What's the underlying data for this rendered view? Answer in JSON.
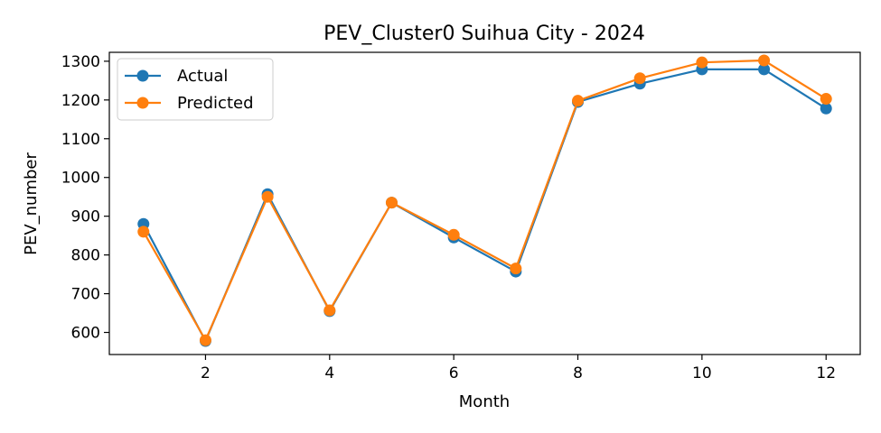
{
  "chart_data": {
    "type": "line",
    "title": "PEV_Cluster0 Suihua City - 2024",
    "xlabel": "Month",
    "ylabel": "PEV_number",
    "xlim": [
      0.45,
      12.55
    ],
    "ylim": [
      543,
      1323
    ],
    "x_ticks": [
      2,
      4,
      6,
      8,
      10,
      12
    ],
    "y_ticks": [
      600,
      700,
      800,
      900,
      1000,
      1100,
      1200,
      1300
    ],
    "grid": false,
    "legend_position": "top-left",
    "x": [
      1,
      2,
      3,
      4,
      5,
      6,
      7,
      8,
      9,
      10,
      11,
      12
    ],
    "series": [
      {
        "name": "Actual",
        "color": "#1f77b4",
        "marker": "circle",
        "values": [
          880,
          578,
          957,
          655,
          935,
          845,
          757,
          1195,
          1242,
          1279,
          1279,
          1178
        ]
      },
      {
        "name": "Predicted",
        "color": "#ff7f0e",
        "marker": "circle",
        "values": [
          860,
          580,
          950,
          657,
          935,
          852,
          765,
          1198,
          1256,
          1297,
          1302,
          1203
        ]
      }
    ]
  }
}
